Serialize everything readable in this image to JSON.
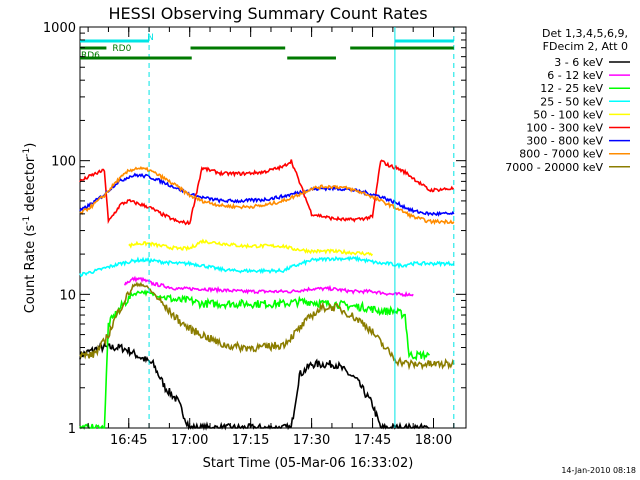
{
  "chart_data": {
    "type": "line",
    "title": "HESSI Observing Summary Count Rates",
    "xlabel": "Start Time (05-Mar-06 16:33:02)",
    "ylabel": "Count Rate (s⁻¹ detector⁻¹)",
    "ylabel_parts": [
      "Count Rate (s",
      "-1",
      " detector",
      "-1",
      ")"
    ],
    "y_scale": "log",
    "ylim": [
      1,
      1000
    ],
    "xlim_minutes_after_1633": [
      0,
      95
    ],
    "x_ticks": [
      {
        "label": "16:45",
        "minute": 12
      },
      {
        "label": "17:00",
        "minute": 27
      },
      {
        "label": "17:15",
        "minute": 42
      },
      {
        "label": "17:30",
        "minute": 57
      },
      {
        "label": "17:45",
        "minute": 72
      },
      {
        "label": "18:00",
        "minute": 87
      }
    ],
    "y_ticks": [
      {
        "label": "1",
        "value": 1
      },
      {
        "label": "10",
        "value": 10
      },
      {
        "label": "100",
        "value": 100
      },
      {
        "label": "1000",
        "value": 1000
      }
    ],
    "legend_header": [
      "Det 1,3,4,5,6,9,",
      "FDecim 2, Att 0"
    ],
    "legend_position": "right",
    "series": [
      {
        "name": "3 - 6 keV",
        "color": "#000000",
        "x": [
          0,
          5,
          10,
          12,
          14,
          18,
          21,
          24,
          27,
          30,
          40,
          50,
          52,
          54,
          57,
          60,
          63,
          68,
          72,
          74,
          76,
          78,
          80,
          86
        ],
        "y": [
          3.5,
          4,
          4,
          3.8,
          3.5,
          3.0,
          2.0,
          1.6,
          1.0,
          1.0,
          1.0,
          1.0,
          1.0,
          2.5,
          3.0,
          3.0,
          3.0,
          2.3,
          1.5,
          1.0,
          1.0,
          1.0,
          1.0,
          1.0
        ]
      },
      {
        "name": "6 - 12 keV",
        "color": "#ff00ff",
        "x": [
          11,
          13,
          15,
          18,
          21,
          24,
          27,
          30,
          40,
          52,
          57,
          62,
          67,
          72,
          77,
          82
        ],
        "y": [
          12,
          13,
          13,
          12,
          11.5,
          11,
          11,
          11,
          10.5,
          10.5,
          11,
          11,
          10.5,
          10.5,
          10,
          10
        ]
      },
      {
        "name": "12 - 25 keV",
        "color": "#00ff00",
        "x": [
          0,
          6,
          7,
          10,
          13,
          15,
          18,
          21,
          24,
          27,
          30,
          40,
          50,
          54,
          57,
          60,
          63,
          66,
          70,
          74,
          77,
          80,
          81,
          86
        ],
        "y": [
          1,
          1,
          6,
          8,
          10,
          10.5,
          10,
          9.5,
          9,
          9,
          8.5,
          8.5,
          8.5,
          8.8,
          8.8,
          8.5,
          8.5,
          8.2,
          8,
          7.5,
          7.5,
          7,
          3.5,
          3.5
        ]
      },
      {
        "name": "25 - 50 keV",
        "color": "#00ffff",
        "x": [
          0,
          4,
          7,
          10,
          12,
          14,
          17,
          20,
          24,
          27,
          30,
          34,
          38,
          42,
          46,
          50,
          52,
          57,
          62,
          66,
          68,
          70,
          72,
          74,
          76,
          78,
          80,
          81,
          86,
          92
        ],
        "y": [
          14,
          15,
          16,
          17,
          17.5,
          18,
          18,
          17.5,
          17,
          17,
          16.5,
          15.5,
          15,
          15,
          15,
          15,
          16,
          18,
          18.5,
          18.5,
          18.5,
          18,
          17.5,
          17,
          17,
          16.5,
          16.5,
          17,
          17,
          17
        ]
      },
      {
        "name": "50 - 100 keV",
        "color": "#ffff00",
        "x": [
          12,
          14,
          17,
          20,
          24,
          27,
          30,
          35,
          40,
          45,
          50,
          52,
          57,
          62,
          67,
          72
        ],
        "y": [
          23,
          24,
          24,
          23,
          22,
          22,
          25,
          24,
          23,
          23,
          23,
          22,
          21,
          21,
          20.5,
          20
        ]
      },
      {
        "name": "100 - 300 keV",
        "color": "#ff0000",
        "x": [
          0,
          3,
          6,
          7,
          10,
          12,
          14,
          17,
          20,
          24,
          27,
          30,
          35,
          40,
          45,
          50,
          52,
          57,
          62,
          66,
          70,
          72,
          74,
          76,
          78,
          80,
          81,
          86,
          92
        ],
        "y": [
          70,
          78,
          85,
          35,
          47,
          50,
          48,
          45,
          40,
          35,
          34,
          88,
          80,
          80,
          82,
          90,
          100,
          40,
          37,
          36,
          37,
          38,
          100,
          92,
          88,
          82,
          78,
          60,
          62
        ]
      },
      {
        "name": "300 - 800 keV",
        "color": "#0000ff",
        "x": [
          0,
          3,
          6,
          9,
          12,
          14,
          17,
          20,
          24,
          27,
          30,
          35,
          40,
          45,
          50,
          54,
          57,
          60,
          63,
          66,
          70,
          74,
          78,
          82,
          86,
          92
        ],
        "y": [
          42,
          48,
          56,
          68,
          76,
          78,
          76,
          70,
          62,
          56,
          53,
          50,
          50,
          51,
          54,
          58,
          61,
          62,
          62,
          61,
          58,
          54,
          48,
          42,
          40,
          40
        ]
      },
      {
        "name": "800 - 7000 keV",
        "color": "#ff8c00",
        "x": [
          0,
          3,
          6,
          9,
          12,
          14,
          17,
          20,
          24,
          27,
          30,
          35,
          40,
          45,
          50,
          54,
          57,
          60,
          63,
          66,
          70,
          74,
          78,
          82,
          86,
          92
        ],
        "y": [
          40,
          46,
          55,
          70,
          84,
          88,
          85,
          76,
          64,
          55,
          50,
          46,
          45,
          46,
          50,
          56,
          62,
          64,
          64,
          62,
          57,
          50,
          44,
          38,
          35,
          35
        ]
      },
      {
        "name": "7000 - 20000 keV",
        "color": "#8b7d00",
        "x": [
          0,
          3,
          5,
          7,
          9,
          11,
          13,
          15,
          17,
          19,
          21,
          24,
          27,
          30,
          35,
          40,
          45,
          50,
          54,
          57,
          60,
          63,
          66,
          70,
          72,
          75,
          78,
          81,
          86,
          92
        ],
        "y": [
          3.5,
          3.5,
          4,
          5,
          7,
          9,
          11.5,
          12,
          11,
          9.5,
          8,
          6.5,
          5.5,
          5,
          4.2,
          4,
          4,
          4.2,
          5.5,
          7,
          8,
          8,
          7.2,
          6,
          5.2,
          4,
          3.2,
          3,
          3,
          3
        ]
      }
    ],
    "flags": [
      {
        "label": "N",
        "color": "#00e5e5",
        "segments": [
          [
            0,
            17
          ],
          [
            77.5,
            92
          ]
        ]
      },
      {
        "label": "RD0",
        "color": "#007a00",
        "segments": [
          [
            0,
            6.5
          ],
          [
            27.2,
            50.5
          ],
          [
            66.5,
            92
          ]
        ]
      },
      {
        "label": "RD6",
        "color": "#007a00",
        "segments": [
          [
            0,
            27.5
          ],
          [
            51,
            63
          ]
        ]
      }
    ],
    "vlines": [
      {
        "minute": 17,
        "style": "dashed",
        "color": "#00e5e5"
      },
      {
        "minute": 77.5,
        "style": "solid",
        "color": "#00e5e5"
      },
      {
        "minute": 92,
        "style": "dashed",
        "color": "#00e5e5"
      }
    ],
    "footer_text": "14-Jan-2010 08:18"
  }
}
